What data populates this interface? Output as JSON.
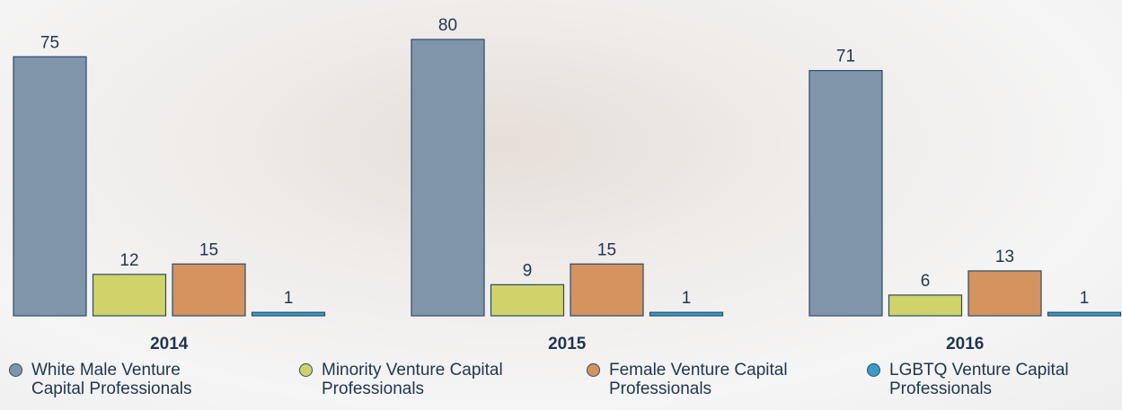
{
  "chart_data": {
    "type": "bar",
    "categories": [
      "2014",
      "2015",
      "2016"
    ],
    "series": [
      {
        "name": "White Male Venture Capital Professionals",
        "color": "#8195aa",
        "values": [
          75,
          80,
          71
        ]
      },
      {
        "name": "Minority Venture Capital Professionals",
        "color": "#cfd36a",
        "values": [
          12,
          9,
          6
        ]
      },
      {
        "name": "Female Venture Capital Professionals",
        "color": "#d4935f",
        "values": [
          15,
          15,
          13
        ]
      },
      {
        "name": "LGBTQ Venture Capital Professionals",
        "color": "#3a9bc6",
        "values": [
          1,
          1,
          1
        ]
      }
    ]
  }
}
